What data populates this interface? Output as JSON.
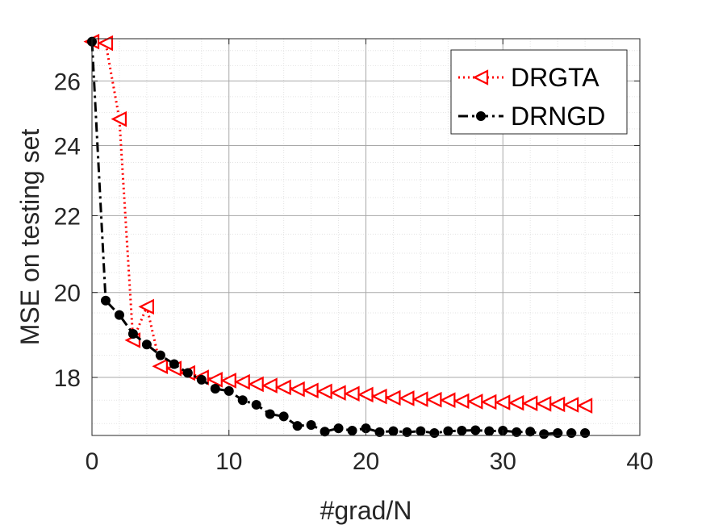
{
  "chart_data": {
    "type": "line",
    "title": "",
    "xlabel": "#grad/N",
    "ylabel": "MSE on testing set",
    "xlim": [
      0,
      40
    ],
    "ylim": [
      16.75,
      27.4
    ],
    "y_scale": "log",
    "grid": true,
    "minor_grid": true,
    "legend_position": "top-right",
    "x_ticks": [
      0,
      10,
      20,
      30,
      40
    ],
    "x_tick_labels": [
      "0",
      "10",
      "20",
      "30",
      "40"
    ],
    "y_ticks": [
      18,
      20,
      22,
      24,
      26
    ],
    "y_tick_labels": [
      "18",
      "20",
      "22",
      "24",
      "26"
    ],
    "series": [
      {
        "name": "DRGTA",
        "color": "#ff0000",
        "line_style": "dotted",
        "marker": "left-triangle",
        "x": [
          0,
          1,
          2,
          3,
          4,
          5,
          6,
          7,
          8,
          9,
          10,
          11,
          12,
          13,
          14,
          15,
          16,
          17,
          18,
          19,
          20,
          21,
          22,
          23,
          24,
          25,
          26,
          27,
          28,
          29,
          30,
          31,
          32,
          33,
          34,
          35,
          36
        ],
        "y": [
          27.3,
          27.25,
          24.8,
          18.85,
          19.65,
          18.25,
          18.2,
          18.1,
          18.0,
          17.95,
          17.93,
          17.9,
          17.85,
          17.82,
          17.78,
          17.74,
          17.71,
          17.69,
          17.66,
          17.64,
          17.62,
          17.58,
          17.55,
          17.54,
          17.52,
          17.51,
          17.5,
          17.48,
          17.47,
          17.46,
          17.45,
          17.44,
          17.43,
          17.42,
          17.41,
          17.4,
          17.38
        ]
      },
      {
        "name": "DRNGD",
        "color": "#000000",
        "line_style": "dash-dot",
        "marker": "filled-circle",
        "x": [
          0,
          1,
          2,
          3,
          4,
          5,
          6,
          7,
          8,
          9,
          10,
          11,
          12,
          13,
          14,
          15,
          16,
          17,
          18,
          19,
          20,
          21,
          22,
          23,
          24,
          25,
          26,
          27,
          28,
          29,
          30,
          31,
          32,
          33,
          34,
          35,
          36
        ],
        "y": [
          27.3,
          19.8,
          19.45,
          19.0,
          18.75,
          18.5,
          18.3,
          18.1,
          17.95,
          17.75,
          17.7,
          17.5,
          17.4,
          17.2,
          17.15,
          16.95,
          16.97,
          16.83,
          16.9,
          16.85,
          16.9,
          16.82,
          16.84,
          16.82,
          16.84,
          16.8,
          16.84,
          16.85,
          16.86,
          16.84,
          16.85,
          16.82,
          16.83,
          16.78,
          16.8,
          16.8,
          16.8
        ]
      }
    ]
  }
}
